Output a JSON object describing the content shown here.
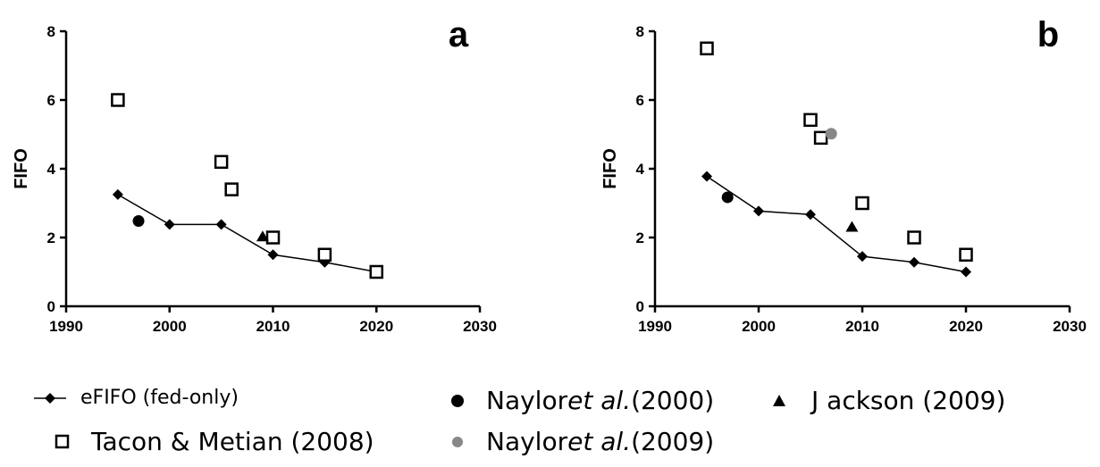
{
  "chart_data": [
    {
      "type": "line",
      "panel_label": "a",
      "xlim": [
        1990,
        2030
      ],
      "ylim": [
        0,
        8
      ],
      "xticks": [
        "1990",
        "2000",
        "2010",
        "2020",
        "2030"
      ],
      "yticks": [
        "0",
        "2",
        "4",
        "6",
        "8"
      ],
      "ylabel": "FIFO",
      "xlabel": "",
      "series": [
        {
          "name": "eFIFO (fed-only)",
          "marker": "diamond",
          "line": true,
          "x": [
            1995,
            2000,
            2005,
            2010,
            2015,
            2020
          ],
          "y": [
            3.25,
            2.38,
            2.38,
            1.5,
            1.28,
            1.0
          ]
        },
        {
          "name": "Tacon & Metian (2008)",
          "marker": "open-square",
          "line": false,
          "x": [
            1995,
            2005,
            2006,
            2010,
            2015,
            2020
          ],
          "y": [
            6.0,
            4.2,
            3.4,
            2.0,
            1.5,
            1.0
          ]
        },
        {
          "name": "Naylor et al. (2000)",
          "marker": "circle",
          "color": "#000000",
          "line": false,
          "x": [
            1997
          ],
          "y": [
            2.48
          ]
        },
        {
          "name": "Jackson (2009)",
          "marker": "triangle",
          "line": false,
          "x": [
            2009
          ],
          "y": [
            2.02
          ]
        }
      ]
    },
    {
      "type": "line",
      "panel_label": "b",
      "xlim": [
        1990,
        2030
      ],
      "ylim": [
        0,
        8
      ],
      "xticks": [
        "1990",
        "2000",
        "2010",
        "2020",
        "2030"
      ],
      "yticks": [
        "0",
        "2",
        "4",
        "6",
        "8"
      ],
      "ylabel": "FIFO",
      "xlabel": "",
      "series": [
        {
          "name": "eFIFO (fed-only)",
          "marker": "diamond",
          "line": true,
          "x": [
            1995,
            2000,
            2005,
            2010,
            2015,
            2020
          ],
          "y": [
            3.78,
            2.77,
            2.67,
            1.45,
            1.28,
            1.0
          ]
        },
        {
          "name": "Tacon & Metian (2008)",
          "marker": "open-square",
          "line": false,
          "x": [
            1995,
            2005,
            2006,
            2010,
            2015,
            2020
          ],
          "y": [
            7.5,
            5.42,
            4.9,
            3.0,
            2.0,
            1.5
          ]
        },
        {
          "name": "Naylor et al. (2000)",
          "marker": "circle",
          "color": "#000000",
          "line": false,
          "x": [
            1997
          ],
          "y": [
            3.17
          ]
        },
        {
          "name": "Naylor et al. (2009)",
          "marker": "circle",
          "color": "#888888",
          "line": false,
          "x": [
            2007
          ],
          "y": [
            5.02
          ]
        },
        {
          "name": "Jackson (2009)",
          "marker": "triangle",
          "line": false,
          "x": [
            2009
          ],
          "y": [
            2.3
          ]
        }
      ]
    }
  ],
  "legend": {
    "efifo": "eFIFO (fed-only)",
    "tacon": "Tacon & Metian (2008)",
    "naylor2000_name": "Naylor ",
    "naylor2000_etal": "et al.",
    "naylor2000_year": " (2000)",
    "naylor2009_name": "Naylor ",
    "naylor2009_etal": "et al.",
    "naylor2009_year": " (2009)",
    "jackson": "J ackson (2009)"
  },
  "colors": {
    "black": "#000000",
    "grey": "#888888"
  }
}
